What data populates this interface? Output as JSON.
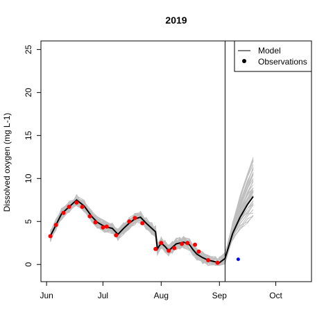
{
  "chart_data": {
    "type": "line",
    "title": "2019",
    "xlabel": "",
    "ylabel": "Dissolved oxygen (mg L-1)",
    "xlim": [
      "2019-05-29",
      "2019-10-20"
    ],
    "ylim": [
      -2,
      26
    ],
    "x_ticks": [
      {
        "date": "2019-06-01",
        "label": "Jun"
      },
      {
        "date": "2019-07-01",
        "label": "Jul"
      },
      {
        "date": "2019-08-01",
        "label": "Aug"
      },
      {
        "date": "2019-09-01",
        "label": "Sep"
      },
      {
        "date": "2019-10-01",
        "label": "Oct"
      }
    ],
    "y_ticks": [
      0,
      5,
      10,
      15,
      20,
      25
    ],
    "forecast_start": "2019-09-04",
    "legend": {
      "position": "top-right",
      "entries": [
        {
          "label": "Model",
          "symbol": "line"
        },
        {
          "label": "Observations",
          "symbol": "point"
        }
      ]
    },
    "colors": {
      "model": "#000000",
      "ensemble": "#bebebe",
      "observations": "#ff0000",
      "future_observation": "#0000ff"
    },
    "series": [
      {
        "name": "Model",
        "points": [
          [
            "2019-06-03",
            3.3
          ],
          [
            "2019-06-06",
            4.6
          ],
          [
            "2019-06-09",
            5.9
          ],
          [
            "2019-06-13",
            6.7
          ],
          [
            "2019-06-17",
            7.5
          ],
          [
            "2019-06-21",
            6.8
          ],
          [
            "2019-06-25",
            5.6
          ],
          [
            "2019-06-28",
            4.9
          ],
          [
            "2019-07-02",
            4.4
          ],
          [
            "2019-07-06",
            4.2
          ],
          [
            "2019-07-09",
            3.5
          ],
          [
            "2019-07-12",
            4.2
          ],
          [
            "2019-07-15",
            4.8
          ],
          [
            "2019-07-18",
            5.3
          ],
          [
            "2019-07-21",
            5.5
          ],
          [
            "2019-07-24",
            4.8
          ],
          [
            "2019-07-27",
            4.2
          ],
          [
            "2019-07-29",
            3.8
          ],
          [
            "2019-07-30",
            1.8
          ],
          [
            "2019-08-01",
            2.5
          ],
          [
            "2019-08-03",
            2.1
          ],
          [
            "2019-08-05",
            1.6
          ],
          [
            "2019-08-07",
            2.0
          ],
          [
            "2019-08-09",
            2.4
          ],
          [
            "2019-08-11",
            2.5
          ],
          [
            "2019-08-13",
            2.6
          ],
          [
            "2019-08-16",
            2.3
          ],
          [
            "2019-08-18",
            1.7
          ],
          [
            "2019-08-20",
            1.2
          ],
          [
            "2019-08-23",
            0.8
          ],
          [
            "2019-08-26",
            0.5
          ],
          [
            "2019-08-30",
            0.3
          ],
          [
            "2019-09-01",
            0.2
          ],
          [
            "2019-09-04",
            0.7
          ],
          [
            "2019-09-08",
            3.6
          ],
          [
            "2019-09-12",
            5.5
          ],
          [
            "2019-09-16",
            7.0
          ],
          [
            "2019-09-19",
            7.9
          ]
        ]
      },
      {
        "name": "Observations",
        "points": [
          [
            "2019-06-03",
            3.3
          ],
          [
            "2019-06-06",
            4.6
          ],
          [
            "2019-06-10",
            6.0
          ],
          [
            "2019-06-13",
            6.7
          ],
          [
            "2019-06-17",
            7.2
          ],
          [
            "2019-06-20",
            6.7
          ],
          [
            "2019-06-24",
            5.6
          ],
          [
            "2019-06-27",
            4.9
          ],
          [
            "2019-07-01",
            4.3
          ],
          [
            "2019-07-03",
            4.4
          ],
          [
            "2019-07-08",
            3.4
          ],
          [
            "2019-07-15",
            5.0
          ],
          [
            "2019-07-18",
            5.4
          ],
          [
            "2019-07-22",
            4.8
          ],
          [
            "2019-07-29",
            1.8
          ],
          [
            "2019-08-01",
            2.5
          ],
          [
            "2019-08-05",
            1.6
          ],
          [
            "2019-08-08",
            1.9
          ],
          [
            "2019-08-12",
            2.4
          ],
          [
            "2019-08-15",
            2.5
          ],
          [
            "2019-08-19",
            2.3
          ],
          [
            "2019-08-21",
            1.5
          ],
          [
            "2019-08-26",
            0.5
          ],
          [
            "2019-08-31",
            0.2
          ]
        ]
      },
      {
        "name": "Future observation",
        "points": [
          [
            "2019-09-11",
            0.6
          ]
        ]
      }
    ]
  }
}
